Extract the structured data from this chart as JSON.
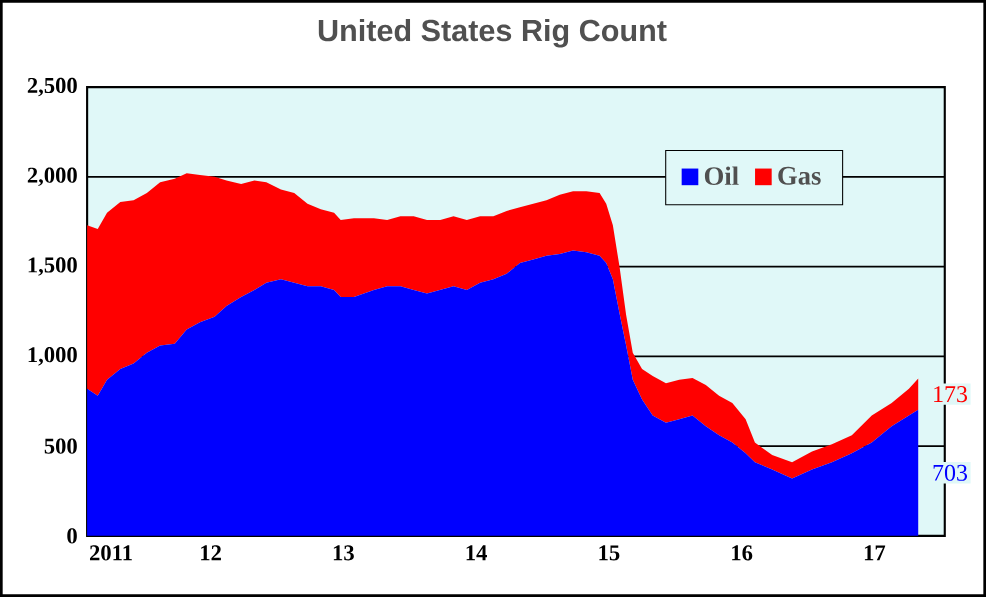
{
  "chart_data": {
    "type": "area",
    "title": "United States Rig Count",
    "stacked": true,
    "grid": "y",
    "legend": "top right",
    "x": [
      2011.07,
      2011.15,
      2011.22,
      2011.32,
      2011.42,
      2011.52,
      2011.62,
      2011.73,
      2011.82,
      2011.92,
      2012.03,
      2012.12,
      2012.23,
      2012.33,
      2012.42,
      2012.53,
      2012.63,
      2012.73,
      2012.83,
      2012.93,
      2012.98,
      2013.08,
      2013.23,
      2013.33,
      2013.43,
      2013.53,
      2013.63,
      2013.73,
      2013.83,
      2013.93,
      2014.03,
      2014.13,
      2014.23,
      2014.33,
      2014.43,
      2014.53,
      2014.63,
      2014.73,
      2014.83,
      2014.93,
      2014.98,
      2015.03,
      2015.08,
      2015.13,
      2015.18,
      2015.25,
      2015.33,
      2015.43,
      2015.53,
      2015.63,
      2015.73,
      2015.83,
      2015.93,
      2016.03,
      2016.1,
      2016.23,
      2016.38,
      2016.53,
      2016.68,
      2016.83,
      2016.98,
      2017.13,
      2017.26,
      2017.33
    ],
    "series": [
      {
        "name": "Oil",
        "color": "#0000ff",
        "values": [
          820,
          780,
          870,
          930,
          960,
          1020,
          1060,
          1070,
          1150,
          1190,
          1220,
          1280,
          1330,
          1370,
          1410,
          1430,
          1410,
          1390,
          1390,
          1370,
          1330,
          1330,
          1370,
          1390,
          1390,
          1370,
          1350,
          1370,
          1390,
          1370,
          1410,
          1430,
          1460,
          1520,
          1540,
          1560,
          1570,
          1590,
          1580,
          1560,
          1520,
          1430,
          1240,
          1060,
          870,
          760,
          670,
          630,
          650,
          670,
          610,
          560,
          520,
          460,
          410,
          370,
          320,
          370,
          410,
          460,
          520,
          610,
          670,
          703
        ],
        "value_labels": [
          null,
          null,
          null,
          null,
          null,
          null,
          null,
          null,
          null,
          null,
          null,
          null,
          null,
          null,
          null,
          null,
          null,
          null,
          null,
          null,
          null,
          null,
          null,
          null,
          null,
          null,
          null,
          null,
          null,
          null,
          null,
          null,
          null,
          null,
          null,
          null,
          null,
          null,
          null,
          null,
          null,
          null,
          null,
          null,
          null,
          null,
          null,
          null,
          null,
          null,
          null,
          null,
          null,
          null,
          null,
          null,
          null,
          null,
          null,
          null,
          null,
          null,
          null,
          "703"
        ]
      },
      {
        "name": "Gas",
        "color": "#ff0000",
        "values": [
          910,
          930,
          930,
          930,
          910,
          890,
          910,
          920,
          870,
          820,
          780,
          700,
          630,
          610,
          560,
          500,
          500,
          460,
          430,
          430,
          430,
          440,
          400,
          370,
          390,
          410,
          410,
          390,
          390,
          390,
          370,
          350,
          350,
          310,
          310,
          310,
          330,
          330,
          340,
          350,
          330,
          300,
          260,
          170,
          150,
          170,
          220,
          220,
          220,
          210,
          230,
          220,
          220,
          190,
          110,
          80,
          90,
          100,
          100,
          100,
          150,
          130,
          150,
          173
        ],
        "value_labels": [
          null,
          null,
          null,
          null,
          null,
          null,
          null,
          null,
          null,
          null,
          null,
          null,
          null,
          null,
          null,
          null,
          null,
          null,
          null,
          null,
          null,
          null,
          null,
          null,
          null,
          null,
          null,
          null,
          null,
          null,
          null,
          null,
          null,
          null,
          null,
          null,
          null,
          null,
          null,
          null,
          null,
          null,
          null,
          null,
          null,
          null,
          null,
          null,
          null,
          null,
          null,
          null,
          null,
          null,
          null,
          null,
          null,
          null,
          null,
          null,
          null,
          null,
          null,
          "173"
        ]
      }
    ],
    "xlim": [
      2011.07,
      2017.53
    ],
    "ylim": [
      0,
      2500
    ],
    "xticks": [
      {
        "value": 2011.25,
        "label": "2011"
      },
      {
        "value": 2012,
        "label": "12"
      },
      {
        "value": 2013,
        "label": "13"
      },
      {
        "value": 2014,
        "label": "14"
      },
      {
        "value": 2015,
        "label": "15"
      },
      {
        "value": 2016,
        "label": "16"
      },
      {
        "value": 2017,
        "label": "17"
      }
    ],
    "yticks": [
      0,
      500,
      {
        "value": 1000,
        "label": "1,000"
      },
      {
        "value": 1500,
        "label": "1,500"
      },
      {
        "value": 2000,
        "label": "2,000"
      },
      {
        "value": 2500,
        "label": "2,500"
      }
    ]
  }
}
